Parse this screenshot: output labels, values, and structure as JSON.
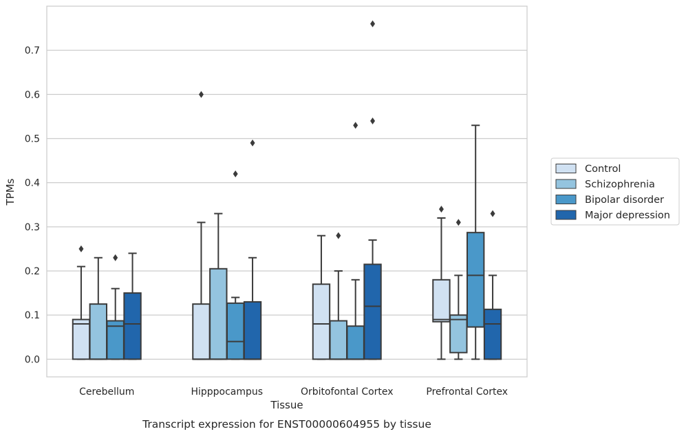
{
  "chart_data": {
    "type": "box",
    "title": "",
    "caption": "Transcript expression for ENST00000604955 by tissue",
    "xlabel": "Tissue",
    "ylabel": "TPMs",
    "ylim": [
      -0.04,
      0.8
    ],
    "yticks": [
      0.0,
      0.1,
      0.2,
      0.3,
      0.4,
      0.5,
      0.6,
      0.7
    ],
    "ytick_labels": [
      "0.0",
      "0.1",
      "0.2",
      "0.3",
      "0.4",
      "0.5",
      "0.6",
      "0.7"
    ],
    "grid": "horizontal",
    "legend_position": "right",
    "categories": [
      "Cerebellum",
      "Hipppocampus",
      "Orbitofontal Cortex",
      "Prefrontal Cortex"
    ],
    "series": [
      {
        "name": "Control",
        "color": "#d0e1f2",
        "boxes": [
          {
            "whislo": 0.0,
            "q1": 0.0,
            "med": 0.08,
            "q3": 0.09,
            "whishi": 0.21,
            "fliers": [
              0.25
            ]
          },
          {
            "whislo": 0.0,
            "q1": 0.0,
            "med": 0.0,
            "q3": 0.125,
            "whishi": 0.31,
            "fliers": [
              0.6
            ]
          },
          {
            "whislo": 0.0,
            "q1": 0.0,
            "med": 0.08,
            "q3": 0.17,
            "whishi": 0.28,
            "fliers": []
          },
          {
            "whislo": 0.0,
            "q1": 0.085,
            "med": 0.09,
            "q3": 0.18,
            "whishi": 0.32,
            "fliers": [
              0.34
            ]
          }
        ]
      },
      {
        "name": "Schizophrenia",
        "color": "#94c4df",
        "boxes": [
          {
            "whislo": 0.0,
            "q1": 0.0,
            "med": 0.0,
            "q3": 0.125,
            "whishi": 0.23,
            "fliers": []
          },
          {
            "whislo": 0.0,
            "q1": 0.0,
            "med": 0.0,
            "q3": 0.205,
            "whishi": 0.33,
            "fliers": []
          },
          {
            "whislo": 0.0,
            "q1": 0.0,
            "med": 0.0,
            "q3": 0.087,
            "whishi": 0.2,
            "fliers": [
              0.28
            ]
          },
          {
            "whislo": 0.0,
            "q1": 0.015,
            "med": 0.09,
            "q3": 0.1,
            "whishi": 0.19,
            "fliers": [
              0.31
            ]
          }
        ]
      },
      {
        "name": "Bipolar disorder",
        "color": "#4a98c9",
        "boxes": [
          {
            "whislo": 0.0,
            "q1": 0.0,
            "med": 0.075,
            "q3": 0.087,
            "whishi": 0.16,
            "fliers": [
              0.23
            ]
          },
          {
            "whislo": 0.0,
            "q1": 0.0,
            "med": 0.04,
            "q3": 0.127,
            "whishi": 0.14,
            "fliers": [
              0.42
            ]
          },
          {
            "whislo": 0.0,
            "q1": 0.0,
            "med": 0.0,
            "q3": 0.075,
            "whishi": 0.18,
            "fliers": [
              0.53
            ]
          },
          {
            "whislo": 0.0,
            "q1": 0.073,
            "med": 0.19,
            "q3": 0.287,
            "whishi": 0.53,
            "fliers": []
          }
        ]
      },
      {
        "name": "Major depression",
        "color": "#2166ac",
        "boxes": [
          {
            "whislo": 0.0,
            "q1": 0.0,
            "med": 0.08,
            "q3": 0.15,
            "whishi": 0.24,
            "fliers": []
          },
          {
            "whislo": 0.0,
            "q1": 0.0,
            "med": 0.0,
            "q3": 0.13,
            "whishi": 0.23,
            "fliers": [
              0.49
            ]
          },
          {
            "whislo": 0.0,
            "q1": 0.0,
            "med": 0.12,
            "q3": 0.215,
            "whishi": 0.27,
            "fliers": [
              0.54,
              0.76
            ]
          },
          {
            "whislo": 0.0,
            "q1": 0.0,
            "med": 0.08,
            "q3": 0.113,
            "whishi": 0.19,
            "fliers": [
              0.33
            ]
          }
        ]
      }
    ]
  }
}
